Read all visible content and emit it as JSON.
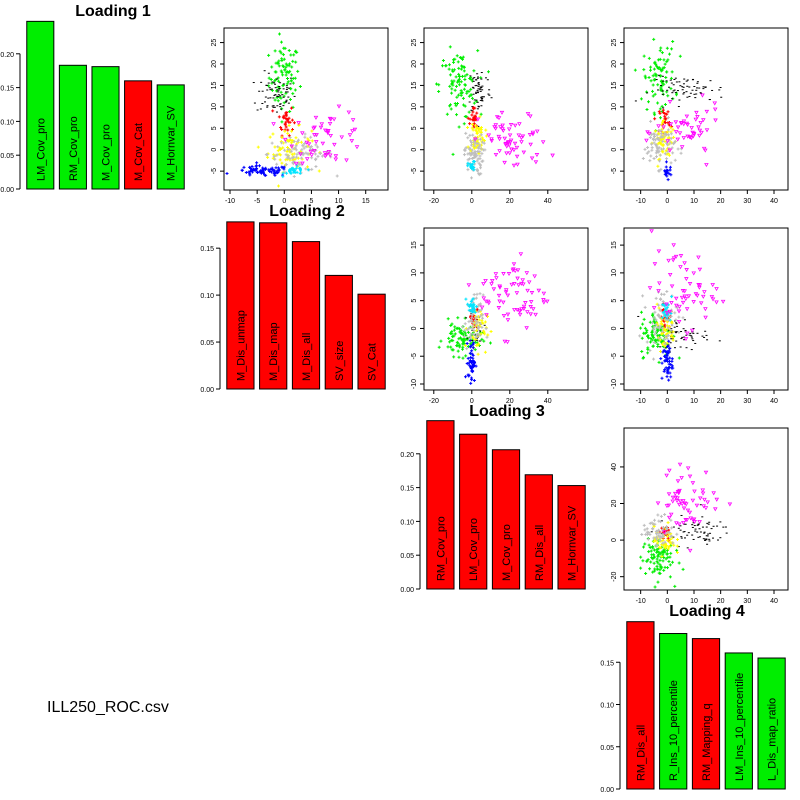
{
  "caption": "ILL250_ROC.csv",
  "colors": {
    "red": "#FF0000",
    "green": "#00EE00",
    "black": "#000000",
    "blue": "#0000FF",
    "cyan": "#00E5FF",
    "gray": "#BEBEBE",
    "yellow": "#FFFF00",
    "magenta": "#FF00FF"
  },
  "chart_data": [
    {
      "type": "bar",
      "title": "Loading 1",
      "ylim": [
        0,
        0.25
      ],
      "yticks": [
        "0.00",
        "0.05",
        "0.10",
        "0.15",
        "0.20"
      ],
      "categories": [
        "LM_Cov_pro",
        "RM_Cov_pro",
        "M_Cov_pro",
        "M_Cov_Cat",
        "M_Hornvar_SV"
      ],
      "values": [
        0.248,
        0.183,
        0.181,
        0.16,
        0.154
      ],
      "bar_colors": [
        "green",
        "green",
        "green",
        "red",
        "green"
      ]
    },
    {
      "type": "bar",
      "title": "Loading 2",
      "ylim": [
        0,
        0.18
      ],
      "yticks": [
        "0.00",
        "0.05",
        "0.10",
        "0.15"
      ],
      "categories": [
        "M_Dis_unmap",
        "M_Dis_map",
        "M_Dis_all",
        "SV_size",
        "SV_Cat"
      ],
      "values": [
        0.178,
        0.177,
        0.157,
        0.121,
        0.101
      ],
      "bar_colors": [
        "red",
        "red",
        "red",
        "red",
        "red"
      ]
    },
    {
      "type": "bar",
      "title": "Loading 3",
      "ylim": [
        0,
        0.25
      ],
      "yticks": [
        "0.00",
        "0.05",
        "0.10",
        "0.15",
        "0.20"
      ],
      "categories": [
        "RM_Cov_pro",
        "LM_Cov_pro",
        "M_Cov_pro",
        "RM_Dis_all",
        "M_Hornvar_SV"
      ],
      "values": [
        0.249,
        0.229,
        0.206,
        0.169,
        0.153
      ],
      "bar_colors": [
        "red",
        "red",
        "red",
        "red",
        "red"
      ]
    },
    {
      "type": "bar",
      "title": "Loading 4",
      "ylim": [
        0,
        0.2
      ],
      "yticks": [
        "0.00",
        "0.05",
        "0.10",
        "0.15"
      ],
      "categories": [
        "RM_Dis_all",
        "R_Ins_10_percentile",
        "RM_Mapping_q",
        "LM_Ins_10_percentile",
        "L_Dis_map_ratio"
      ],
      "values": [
        0.198,
        0.184,
        0.178,
        0.161,
        0.155
      ],
      "bar_colors": [
        "red",
        "green",
        "red",
        "green",
        "green"
      ]
    },
    {
      "type": "scatter",
      "xlim": [
        -10,
        18
      ],
      "ylim": [
        -8,
        27
      ],
      "xticks": [
        -10,
        -5,
        0,
        5,
        10,
        15
      ],
      "yticks": [
        -5,
        0,
        5,
        10,
        15,
        20,
        25
      ],
      "clusters": [
        {
          "color": "green",
          "center": [
            0,
            17
          ],
          "spread": [
            1.4,
            4
          ],
          "n": 90
        },
        {
          "color": "black",
          "center": [
            -1.5,
            13
          ],
          "spread": [
            1.8,
            2.5
          ],
          "n": 70
        },
        {
          "color": "red",
          "center": [
            0.3,
            7
          ],
          "spread": [
            0.7,
            1.8
          ],
          "n": 30
        },
        {
          "color": "yellow",
          "center": [
            1,
            0
          ],
          "spread": [
            2,
            2.5
          ],
          "n": 80
        },
        {
          "color": "gray",
          "center": [
            3,
            -1
          ],
          "spread": [
            3,
            2
          ],
          "n": 90
        },
        {
          "color": "blue",
          "center": [
            -4,
            -5
          ],
          "spread": [
            2.5,
            0.6
          ],
          "n": 70
        },
        {
          "color": "cyan",
          "center": [
            2,
            -5
          ],
          "spread": [
            1,
            0.5
          ],
          "n": 30
        },
        {
          "color": "magenta",
          "center": [
            8,
            3
          ],
          "spread": [
            3.5,
            3
          ],
          "n": 50
        }
      ]
    },
    {
      "type": "scatter",
      "xlim": [
        -22,
        58
      ],
      "ylim": [
        -8,
        27
      ],
      "xticks": [
        -20,
        0,
        20,
        40
      ],
      "yticks": [
        -5,
        0,
        5,
        10,
        15,
        20,
        25
      ],
      "clusters": [
        {
          "color": "green",
          "center": [
            -7,
            15
          ],
          "spread": [
            5,
            4
          ],
          "n": 100
        },
        {
          "color": "black",
          "center": [
            4,
            14
          ],
          "spread": [
            3,
            3
          ],
          "n": 60
        },
        {
          "color": "red",
          "center": [
            1,
            7
          ],
          "spread": [
            1,
            1.5
          ],
          "n": 25
        },
        {
          "color": "yellow",
          "center": [
            3,
            3
          ],
          "spread": [
            2,
            2
          ],
          "n": 60
        },
        {
          "color": "gray",
          "center": [
            1,
            -1
          ],
          "spread": [
            2.5,
            2.5
          ],
          "n": 80
        },
        {
          "color": "cyan",
          "center": [
            0,
            -4
          ],
          "spread": [
            1,
            0.6
          ],
          "n": 20
        },
        {
          "color": "magenta",
          "center": [
            22,
            2
          ],
          "spread": [
            9,
            3.5
          ],
          "n": 60
        }
      ]
    },
    {
      "type": "scatter",
      "xlim": [
        -14,
        43
      ],
      "ylim": [
        -8,
        27
      ],
      "xticks": [
        -10,
        0,
        10,
        20,
        30,
        40
      ],
      "yticks": [
        -5,
        0,
        5,
        10,
        15,
        20,
        25
      ],
      "clusters": [
        {
          "color": "green",
          "center": [
            -3,
            17
          ],
          "spread": [
            3,
            4
          ],
          "n": 90
        },
        {
          "color": "black",
          "center": [
            8,
            14
          ],
          "spread": [
            7,
            1.5
          ],
          "n": 70
        },
        {
          "color": "red",
          "center": [
            -1,
            7
          ],
          "spread": [
            1,
            1.5
          ],
          "n": 25
        },
        {
          "color": "yellow",
          "center": [
            -1,
            2
          ],
          "spread": [
            2,
            2
          ],
          "n": 60
        },
        {
          "color": "gray",
          "center": [
            -3,
            1
          ],
          "spread": [
            3,
            2.5
          ],
          "n": 80
        },
        {
          "color": "blue",
          "center": [
            0,
            -5
          ],
          "spread": [
            0.8,
            0.8
          ],
          "n": 20
        },
        {
          "color": "magenta",
          "center": [
            8,
            4
          ],
          "spread": [
            6,
            3
          ],
          "n": 50
        }
      ]
    },
    {
      "type": "scatter",
      "xlim": [
        -22,
        58
      ],
      "ylim": [
        -10,
        17
      ],
      "xticks": [
        -20,
        0,
        20,
        40
      ],
      "yticks": [
        -10,
        -5,
        0,
        5,
        10,
        15
      ],
      "clusters": [
        {
          "color": "green",
          "center": [
            -5,
            -2
          ],
          "spread": [
            5,
            1.5
          ],
          "n": 90
        },
        {
          "color": "black",
          "center": [
            3,
            0
          ],
          "spread": [
            2,
            1.5
          ],
          "n": 30
        },
        {
          "color": "red",
          "center": [
            1,
            2
          ],
          "spread": [
            1,
            1
          ],
          "n": 25
        },
        {
          "color": "yellow",
          "center": [
            3,
            0
          ],
          "spread": [
            2.5,
            2
          ],
          "n": 50
        },
        {
          "color": "gray",
          "center": [
            1,
            1
          ],
          "spread": [
            2.5,
            2.5
          ],
          "n": 60
        },
        {
          "color": "cyan",
          "center": [
            0,
            4
          ],
          "spread": [
            1.2,
            0.8
          ],
          "n": 25
        },
        {
          "color": "blue",
          "center": [
            0,
            -6
          ],
          "spread": [
            1,
            1.8
          ],
          "n": 50
        },
        {
          "color": "magenta",
          "center": [
            22,
            6
          ],
          "spread": [
            9,
            3.5
          ],
          "n": 70
        }
      ]
    },
    {
      "type": "scatter",
      "xlim": [
        -14,
        43
      ],
      "ylim": [
        -10,
        17
      ],
      "xticks": [
        -10,
        0,
        10,
        20,
        30,
        40
      ],
      "yticks": [
        -10,
        -5,
        0,
        5,
        10,
        15
      ],
      "clusters": [
        {
          "color": "green",
          "center": [
            -4,
            -1
          ],
          "spread": [
            3,
            2
          ],
          "n": 90
        },
        {
          "color": "black",
          "center": [
            6,
            -1
          ],
          "spread": [
            5,
            1.5
          ],
          "n": 60
        },
        {
          "color": "red",
          "center": [
            -1,
            2
          ],
          "spread": [
            1,
            1
          ],
          "n": 25
        },
        {
          "color": "yellow",
          "center": [
            -1,
            0
          ],
          "spread": [
            2,
            2
          ],
          "n": 50
        },
        {
          "color": "gray",
          "center": [
            -2,
            2
          ],
          "spread": [
            3,
            2.5
          ],
          "n": 70
        },
        {
          "color": "cyan",
          "center": [
            0,
            3
          ],
          "spread": [
            1,
            1
          ],
          "n": 20
        },
        {
          "color": "blue",
          "center": [
            0,
            -6
          ],
          "spread": [
            1,
            1.8
          ],
          "n": 50
        },
        {
          "color": "magenta",
          "center": [
            6,
            7
          ],
          "spread": [
            6,
            3.5
          ],
          "n": 60
        }
      ]
    },
    {
      "type": "scatter",
      "xlim": [
        -14,
        43
      ],
      "ylim": [
        -24,
        58
      ],
      "xticks": [
        -10,
        0,
        10,
        20,
        30,
        40
      ],
      "yticks": [
        -20,
        0,
        20,
        40
      ],
      "clusters": [
        {
          "color": "green",
          "center": [
            -4,
            -10
          ],
          "spread": [
            3,
            6
          ],
          "n": 90
        },
        {
          "color": "black",
          "center": [
            10,
            5
          ],
          "spread": [
            7,
            4
          ],
          "n": 70
        },
        {
          "color": "red",
          "center": [
            -1,
            3
          ],
          "spread": [
            1,
            2
          ],
          "n": 20
        },
        {
          "color": "yellow",
          "center": [
            -1,
            0
          ],
          "spread": [
            2,
            4
          ],
          "n": 50
        },
        {
          "color": "gray",
          "center": [
            -3,
            5
          ],
          "spread": [
            3,
            4
          ],
          "n": 60
        },
        {
          "color": "magenta",
          "center": [
            8,
            22
          ],
          "spread": [
            6,
            9
          ],
          "n": 60
        }
      ]
    }
  ]
}
